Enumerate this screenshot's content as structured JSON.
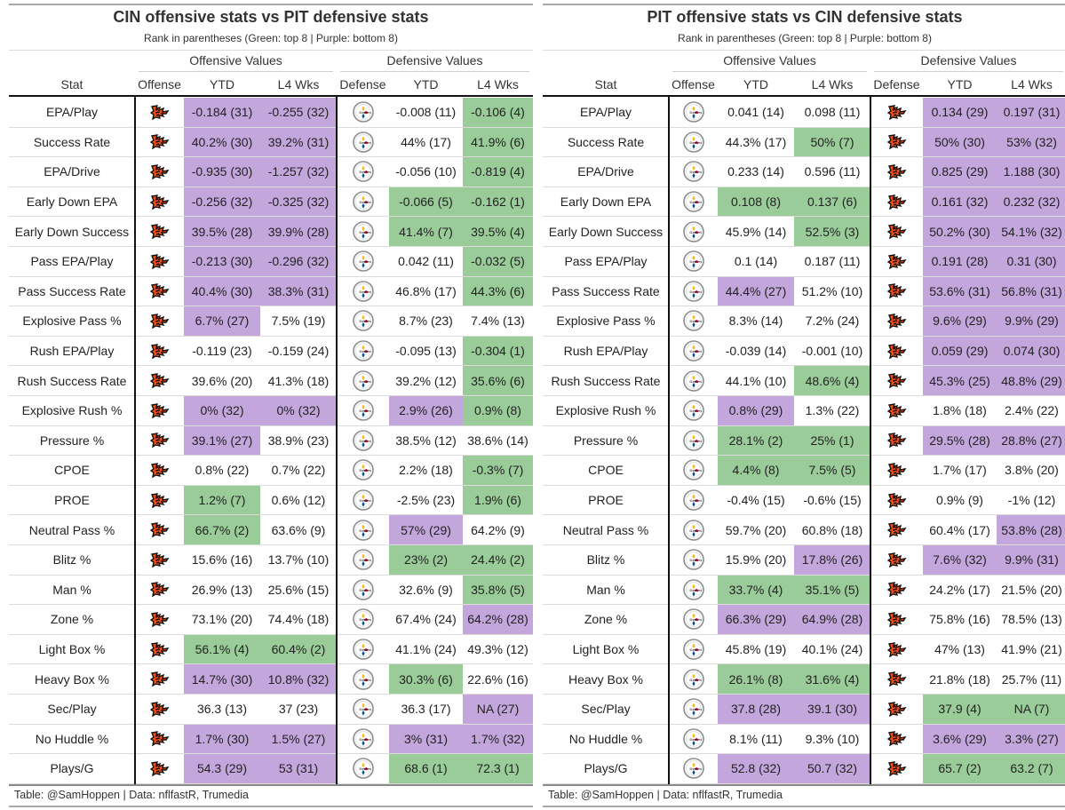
{
  "colors": {
    "green": "#99cc99",
    "purple": "#c3a6dc"
  },
  "footer": "Table: @SamHoppen | Data: nflfastR, Trumedia",
  "headers": {
    "stat": "Stat",
    "offense_group": "Offensive Values",
    "defense_group": "Defensive Values",
    "offense": "Offense",
    "defense": "Defense",
    "ytd": "YTD",
    "l4": "L4 Wks"
  },
  "stats": [
    "EPA/Play",
    "Success Rate",
    "EPA/Drive",
    "Early Down EPA",
    "Early Down Success",
    "Pass EPA/Play",
    "Pass Success Rate",
    "Explosive Pass %",
    "Rush EPA/Play",
    "Rush Success Rate",
    "Explosive Rush %",
    "Pressure %",
    "CPOE",
    "PROE",
    "Neutral Pass %",
    "Blitz %",
    "Man %",
    "Zone %",
    "Light Box %",
    "Heavy Box %",
    "Sec/Play",
    "No Huddle %",
    "Plays/G"
  ],
  "left": {
    "title": "CIN offensive stats vs PIT defensive stats",
    "subtitle": "Rank in parentheses (Green: top 8 | Purple: bottom 8)",
    "offense_icon": "bengals-logo-icon",
    "defense_icon": "steelers-logo-icon",
    "rows": [
      [
        [
          "-0.184 (31)",
          "p"
        ],
        [
          "-0.255 (32)",
          "p"
        ],
        [
          "-0.008 (11)",
          ""
        ],
        [
          "-0.106 (4)",
          "g"
        ]
      ],
      [
        [
          "40.2% (30)",
          "p"
        ],
        [
          "39.2% (31)",
          "p"
        ],
        [
          "44% (17)",
          ""
        ],
        [
          "41.9% (6)",
          "g"
        ]
      ],
      [
        [
          "-0.935 (30)",
          "p"
        ],
        [
          "-1.257 (32)",
          "p"
        ],
        [
          "-0.056 (10)",
          ""
        ],
        [
          "-0.819 (4)",
          "g"
        ]
      ],
      [
        [
          "-0.256 (32)",
          "p"
        ],
        [
          "-0.325 (32)",
          "p"
        ],
        [
          "-0.066 (5)",
          "g"
        ],
        [
          "-0.162 (1)",
          "g"
        ]
      ],
      [
        [
          "39.5% (28)",
          "p"
        ],
        [
          "39.9% (28)",
          "p"
        ],
        [
          "41.4% (7)",
          "g"
        ],
        [
          "39.5% (4)",
          "g"
        ]
      ],
      [
        [
          "-0.213 (30)",
          "p"
        ],
        [
          "-0.296 (32)",
          "p"
        ],
        [
          "0.042 (11)",
          ""
        ],
        [
          "-0.032 (5)",
          "g"
        ]
      ],
      [
        [
          "40.4% (30)",
          "p"
        ],
        [
          "38.3% (31)",
          "p"
        ],
        [
          "46.8% (17)",
          ""
        ],
        [
          "44.3% (6)",
          "g"
        ]
      ],
      [
        [
          "6.7% (27)",
          "p"
        ],
        [
          "7.5% (19)",
          ""
        ],
        [
          "8.7% (23)",
          ""
        ],
        [
          "7.4% (13)",
          ""
        ]
      ],
      [
        [
          "-0.119 (23)",
          ""
        ],
        [
          "-0.159 (24)",
          ""
        ],
        [
          "-0.095 (13)",
          ""
        ],
        [
          "-0.304 (1)",
          "g"
        ]
      ],
      [
        [
          "39.6% (20)",
          ""
        ],
        [
          "41.3% (18)",
          ""
        ],
        [
          "39.2% (12)",
          ""
        ],
        [
          "35.6% (6)",
          "g"
        ]
      ],
      [
        [
          "0% (32)",
          "p"
        ],
        [
          "0% (32)",
          "p"
        ],
        [
          "2.9% (26)",
          "p"
        ],
        [
          "0.9% (8)",
          "g"
        ]
      ],
      [
        [
          "39.1% (27)",
          "p"
        ],
        [
          "38.9% (23)",
          ""
        ],
        [
          "38.5% (12)",
          ""
        ],
        [
          "38.6% (14)",
          ""
        ]
      ],
      [
        [
          "0.8% (22)",
          ""
        ],
        [
          "0.7% (22)",
          ""
        ],
        [
          "2.2% (18)",
          ""
        ],
        [
          "-0.3% (7)",
          "g"
        ]
      ],
      [
        [
          "1.2% (7)",
          "g"
        ],
        [
          "0.6% (12)",
          ""
        ],
        [
          "-2.5% (23)",
          ""
        ],
        [
          "1.9% (6)",
          "g"
        ]
      ],
      [
        [
          "66.7% (2)",
          "g"
        ],
        [
          "63.6% (9)",
          ""
        ],
        [
          "57% (29)",
          "p"
        ],
        [
          "64.2% (9)",
          ""
        ]
      ],
      [
        [
          "15.6% (16)",
          ""
        ],
        [
          "13.7% (10)",
          ""
        ],
        [
          "23% (2)",
          "g"
        ],
        [
          "24.4% (2)",
          "g"
        ]
      ],
      [
        [
          "26.9% (13)",
          ""
        ],
        [
          "25.6% (15)",
          ""
        ],
        [
          "32.6% (9)",
          ""
        ],
        [
          "35.8% (5)",
          "g"
        ]
      ],
      [
        [
          "73.1% (20)",
          ""
        ],
        [
          "74.4% (18)",
          ""
        ],
        [
          "67.4% (24)",
          ""
        ],
        [
          "64.2% (28)",
          "p"
        ]
      ],
      [
        [
          "56.1% (4)",
          "g"
        ],
        [
          "60.4% (2)",
          "g"
        ],
        [
          "41.1% (24)",
          ""
        ],
        [
          "49.3% (12)",
          ""
        ]
      ],
      [
        [
          "14.7% (30)",
          "p"
        ],
        [
          "10.8% (32)",
          "p"
        ],
        [
          "30.3% (6)",
          "g"
        ],
        [
          "22.6% (16)",
          ""
        ]
      ],
      [
        [
          "36.3 (13)",
          ""
        ],
        [
          "37 (23)",
          ""
        ],
        [
          "36.3 (17)",
          ""
        ],
        [
          "NA (27)",
          "p"
        ]
      ],
      [
        [
          "1.7% (30)",
          "p"
        ],
        [
          "1.5% (27)",
          "p"
        ],
        [
          "3% (31)",
          "p"
        ],
        [
          "1.7% (32)",
          "p"
        ]
      ],
      [
        [
          "54.3 (29)",
          "p"
        ],
        [
          "53 (31)",
          "p"
        ],
        [
          "68.6 (1)",
          "g"
        ],
        [
          "72.3 (1)",
          "g"
        ]
      ]
    ]
  },
  "right": {
    "title": "PIT offensive stats vs CIN defensive stats",
    "subtitle": "Rank in parentheses (Green: top 8 | Purple: bottom 8)",
    "offense_icon": "steelers-logo-icon",
    "defense_icon": "bengals-logo-icon",
    "rows": [
      [
        [
          "0.041 (14)",
          ""
        ],
        [
          "0.098 (11)",
          ""
        ],
        [
          "0.134 (29)",
          "p"
        ],
        [
          "0.197 (31)",
          "p"
        ]
      ],
      [
        [
          "44.3% (17)",
          ""
        ],
        [
          "50% (7)",
          "g"
        ],
        [
          "50% (30)",
          "p"
        ],
        [
          "53% (32)",
          "p"
        ]
      ],
      [
        [
          "0.233 (14)",
          ""
        ],
        [
          "0.596 (11)",
          ""
        ],
        [
          "0.825 (29)",
          "p"
        ],
        [
          "1.188 (30)",
          "p"
        ]
      ],
      [
        [
          "0.108 (8)",
          "g"
        ],
        [
          "0.137 (6)",
          "g"
        ],
        [
          "0.161 (32)",
          "p"
        ],
        [
          "0.232 (32)",
          "p"
        ]
      ],
      [
        [
          "45.9% (14)",
          ""
        ],
        [
          "52.5% (3)",
          "g"
        ],
        [
          "50.2% (30)",
          "p"
        ],
        [
          "54.1% (32)",
          "p"
        ]
      ],
      [
        [
          "0.1 (14)",
          ""
        ],
        [
          "0.187 (11)",
          ""
        ],
        [
          "0.191 (28)",
          "p"
        ],
        [
          "0.31 (30)",
          "p"
        ]
      ],
      [
        [
          "44.4% (27)",
          "p"
        ],
        [
          "51.2% (10)",
          ""
        ],
        [
          "53.6% (31)",
          "p"
        ],
        [
          "56.8% (31)",
          "p"
        ]
      ],
      [
        [
          "8.3% (14)",
          ""
        ],
        [
          "7.2% (24)",
          ""
        ],
        [
          "9.6% (29)",
          "p"
        ],
        [
          "9.9% (29)",
          "p"
        ]
      ],
      [
        [
          "-0.039 (14)",
          ""
        ],
        [
          "-0.001 (10)",
          ""
        ],
        [
          "0.059 (29)",
          "p"
        ],
        [
          "0.074 (30)",
          "p"
        ]
      ],
      [
        [
          "44.1% (10)",
          ""
        ],
        [
          "48.6% (4)",
          "g"
        ],
        [
          "45.3% (25)",
          "p"
        ],
        [
          "48.8% (29)",
          "p"
        ]
      ],
      [
        [
          "0.8% (29)",
          "p"
        ],
        [
          "1.3% (22)",
          ""
        ],
        [
          "1.8% (18)",
          ""
        ],
        [
          "2.4% (22)",
          ""
        ]
      ],
      [
        [
          "28.1% (2)",
          "g"
        ],
        [
          "25% (1)",
          "g"
        ],
        [
          "29.5% (28)",
          "p"
        ],
        [
          "28.8% (27)",
          "p"
        ]
      ],
      [
        [
          "4.4% (8)",
          "g"
        ],
        [
          "7.5% (5)",
          "g"
        ],
        [
          "1.7% (17)",
          ""
        ],
        [
          "3.8% (20)",
          ""
        ]
      ],
      [
        [
          "-0.4% (15)",
          ""
        ],
        [
          "-0.6% (15)",
          ""
        ],
        [
          "0.9% (9)",
          ""
        ],
        [
          "-1% (12)",
          ""
        ]
      ],
      [
        [
          "59.7% (20)",
          ""
        ],
        [
          "60.8% (18)",
          ""
        ],
        [
          "60.4% (17)",
          ""
        ],
        [
          "53.8% (28)",
          "p"
        ]
      ],
      [
        [
          "15.9% (20)",
          ""
        ],
        [
          "17.8% (26)",
          "p"
        ],
        [
          "7.6% (32)",
          "p"
        ],
        [
          "9.9% (31)",
          "p"
        ]
      ],
      [
        [
          "33.7% (4)",
          "g"
        ],
        [
          "35.1% (5)",
          "g"
        ],
        [
          "24.2% (17)",
          ""
        ],
        [
          "21.5% (20)",
          ""
        ]
      ],
      [
        [
          "66.3% (29)",
          "p"
        ],
        [
          "64.9% (28)",
          "p"
        ],
        [
          "75.8% (16)",
          ""
        ],
        [
          "78.5% (13)",
          ""
        ]
      ],
      [
        [
          "45.8% (19)",
          ""
        ],
        [
          "40.1% (24)",
          ""
        ],
        [
          "47% (13)",
          ""
        ],
        [
          "41.9% (21)",
          ""
        ]
      ],
      [
        [
          "26.1% (8)",
          "g"
        ],
        [
          "31.6% (4)",
          "g"
        ],
        [
          "21.8% (18)",
          ""
        ],
        [
          "25.7% (11)",
          ""
        ]
      ],
      [
        [
          "37.8 (28)",
          "p"
        ],
        [
          "39.1 (30)",
          "p"
        ],
        [
          "37.9 (4)",
          "g"
        ],
        [
          "NA (7)",
          "g"
        ]
      ],
      [
        [
          "8.1% (11)",
          ""
        ],
        [
          "9.3% (10)",
          ""
        ],
        [
          "3.6% (29)",
          "p"
        ],
        [
          "3.3% (27)",
          "p"
        ]
      ],
      [
        [
          "52.8 (32)",
          "p"
        ],
        [
          "50.7 (32)",
          "p"
        ],
        [
          "65.7 (2)",
          "g"
        ],
        [
          "63.2 (7)",
          "g"
        ]
      ]
    ]
  }
}
